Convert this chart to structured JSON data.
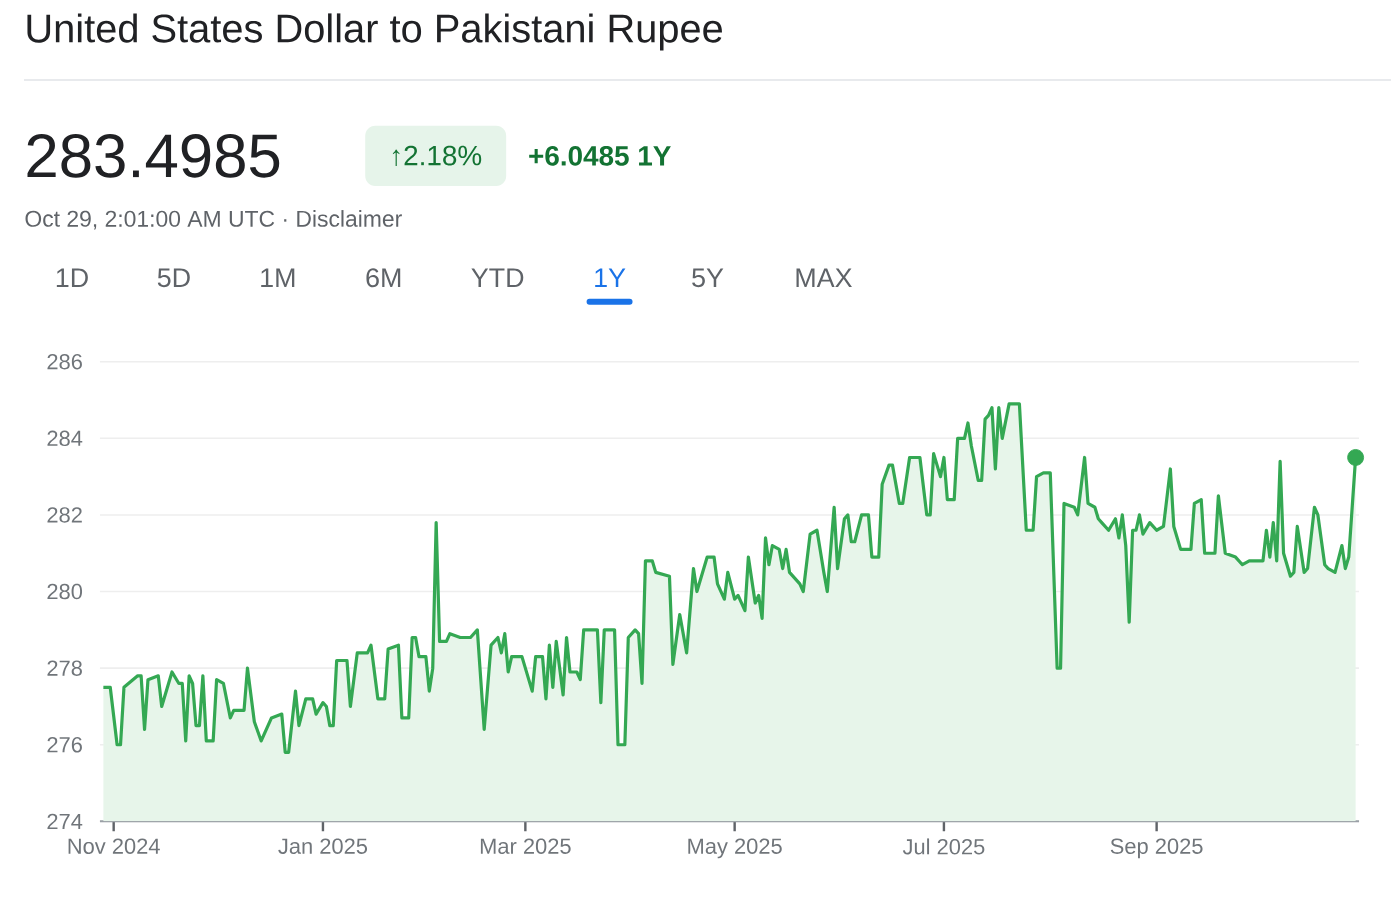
{
  "chart_data": {
    "type": "area",
    "title": "United States Dollar to Pakistani Rupee",
    "annotations": [
      "283.4985",
      "↑2.18%",
      "+6.0485 1Y",
      "Oct 29, 2:01:00 AM UTC · Disclaimer",
      "1D",
      "5D",
      "1M",
      "6M",
      "YTD",
      "1Y",
      "5Y",
      "MAX"
    ],
    "xlim": [
      "2024-10-28",
      "2025-10-30"
    ],
    "ylim": [
      274,
      286
    ],
    "yticks": [
      274,
      276,
      278,
      280,
      282,
      284,
      286
    ],
    "xticks": [
      {
        "value": "2024-11-01",
        "label": "Nov 2024"
      },
      {
        "value": "2025-01-01",
        "label": "Jan 2025"
      },
      {
        "value": "2025-03-01",
        "label": "Mar 2025"
      },
      {
        "value": "2025-05-01",
        "label": "May 2025"
      },
      {
        "value": "2025-07-01",
        "label": "Jul 2025"
      },
      {
        "value": "2025-09-01",
        "label": "Sep 2025"
      }
    ],
    "grid": "y",
    "x": [
      "2024-10-29",
      "2024-10-31",
      "2024-11-02",
      "2024-11-03",
      "2024-11-04",
      "2024-11-08",
      "2024-11-09",
      "2024-11-10",
      "2024-11-11",
      "2024-11-14",
      "2024-11-15",
      "2024-11-18",
      "2024-11-20",
      "2024-11-21",
      "2024-11-22",
      "2024-11-23",
      "2024-11-24",
      "2024-11-25",
      "2024-11-26",
      "2024-11-27",
      "2024-11-28",
      "2024-11-30",
      "2024-12-01",
      "2024-12-03",
      "2024-12-05",
      "2024-12-06",
      "2024-12-09",
      "2024-12-10",
      "2024-12-12",
      "2024-12-14",
      "2024-12-17",
      "2024-12-20",
      "2024-12-21",
      "2024-12-22",
      "2024-12-24",
      "2024-12-25",
      "2024-12-27",
      "2024-12-29",
      "2024-12-30",
      "2025-01-01",
      "2025-01-02",
      "2025-01-03",
      "2025-01-04",
      "2025-01-05",
      "2025-01-08",
      "2025-01-09",
      "2025-01-11",
      "2025-01-14",
      "2025-01-15",
      "2025-01-17",
      "2025-01-19",
      "2025-01-20",
      "2025-01-23",
      "2025-01-24",
      "2025-01-26",
      "2025-01-27",
      "2025-01-28",
      "2025-01-29",
      "2025-01-31",
      "2025-02-01",
      "2025-02-02",
      "2025-02-03",
      "2025-02-04",
      "2025-02-06",
      "2025-02-07",
      "2025-02-10",
      "2025-02-13",
      "2025-02-15",
      "2025-02-17",
      "2025-02-19",
      "2025-02-21",
      "2025-02-22",
      "2025-02-23",
      "2025-02-24",
      "2025-02-25",
      "2025-02-28",
      "2025-03-03",
      "2025-03-04",
      "2025-03-06",
      "2025-03-07",
      "2025-03-08",
      "2025-03-09",
      "2025-03-10",
      "2025-03-12",
      "2025-03-13",
      "2025-03-14",
      "2025-03-16",
      "2025-03-17",
      "2025-03-18",
      "2025-03-22",
      "2025-03-23",
      "2025-03-24",
      "2025-03-27",
      "2025-03-28",
      "2025-03-30",
      "2025-03-31",
      "2025-04-02",
      "2025-04-03",
      "2025-04-04",
      "2025-04-05",
      "2025-04-07",
      "2025-04-08",
      "2025-04-12",
      "2025-04-13",
      "2025-04-15",
      "2025-04-17",
      "2025-04-19",
      "2025-04-20",
      "2025-04-23",
      "2025-04-25",
      "2025-04-26",
      "2025-04-28",
      "2025-04-29",
      "2025-05-01",
      "2025-05-02",
      "2025-05-04",
      "2025-05-05",
      "2025-05-07",
      "2025-05-08",
      "2025-05-09",
      "2025-05-10",
      "2025-05-11",
      "2025-05-12",
      "2025-05-14",
      "2025-05-15",
      "2025-05-16",
      "2025-05-17",
      "2025-05-20",
      "2025-05-21",
      "2025-05-23",
      "2025-05-25",
      "2025-05-27",
      "2025-05-28",
      "2025-05-30",
      "2025-05-31",
      "2025-06-02",
      "2025-06-03",
      "2025-06-04",
      "2025-06-05",
      "2025-06-07",
      "2025-06-09",
      "2025-06-10",
      "2025-06-12",
      "2025-06-13",
      "2025-06-15",
      "2025-06-16",
      "2025-06-18",
      "2025-06-19",
      "2025-06-21",
      "2025-06-24",
      "2025-06-26",
      "2025-06-27",
      "2025-06-28",
      "2025-06-29",
      "2025-06-30",
      "2025-07-01",
      "2025-07-02",
      "2025-07-04",
      "2025-07-05",
      "2025-07-07",
      "2025-07-08",
      "2025-07-09",
      "2025-07-11",
      "2025-07-12",
      "2025-07-13",
      "2025-07-14",
      "2025-07-15",
      "2025-07-16",
      "2025-07-17",
      "2025-07-18",
      "2025-07-20",
      "2025-07-23",
      "2025-07-25",
      "2025-07-27",
      "2025-07-28",
      "2025-07-30",
      "2025-08-01",
      "2025-08-03",
      "2025-08-04",
      "2025-08-05",
      "2025-08-08",
      "2025-08-09",
      "2025-08-11",
      "2025-08-12",
      "2025-08-14",
      "2025-08-15",
      "2025-08-16",
      "2025-08-18",
      "2025-08-20",
      "2025-08-21",
      "2025-08-22",
      "2025-08-23",
      "2025-08-24",
      "2025-08-25",
      "2025-08-26",
      "2025-08-27",
      "2025-08-28",
      "2025-08-30",
      "2025-09-01",
      "2025-09-03",
      "2025-09-05",
      "2025-09-06",
      "2025-09-08",
      "2025-09-11",
      "2025-09-12",
      "2025-09-14",
      "2025-09-15",
      "2025-09-18",
      "2025-09-19",
      "2025-09-21",
      "2025-09-24",
      "2025-09-26",
      "2025-09-28",
      "2025-10-02",
      "2025-10-03",
      "2025-10-04",
      "2025-10-05",
      "2025-10-06",
      "2025-10-07",
      "2025-10-08",
      "2025-10-10",
      "2025-10-11",
      "2025-10-12",
      "2025-10-14",
      "2025-10-15",
      "2025-10-17",
      "2025-10-18",
      "2025-10-20",
      "2025-10-21",
      "2025-10-23",
      "2025-10-25",
      "2025-10-26",
      "2025-10-27",
      "2025-10-29"
    ],
    "series": [
      {
        "color": "#34a853",
        "values": [
          277.5,
          277.5,
          276.0,
          276.0,
          277.5,
          277.8,
          277.8,
          276.4,
          277.7,
          277.8,
          277.0,
          277.9,
          277.6,
          277.6,
          276.1,
          277.8,
          277.6,
          276.5,
          276.5,
          277.8,
          276.1,
          276.1,
          277.7,
          277.6,
          276.7,
          276.9,
          276.9,
          278.0,
          276.6,
          276.1,
          276.7,
          276.8,
          275.8,
          275.8,
          277.4,
          276.5,
          277.2,
          277.2,
          276.8,
          277.1,
          277.0,
          276.5,
          276.5,
          278.2,
          278.2,
          277.0,
          278.4,
          278.4,
          278.6,
          277.2,
          277.2,
          278.5,
          278.6,
          276.7,
          276.7,
          278.8,
          278.8,
          278.3,
          278.3,
          277.4,
          278.0,
          281.8,
          278.7,
          278.7,
          278.9,
          278.8,
          278.8,
          279.0,
          276.4,
          278.6,
          278.8,
          278.4,
          278.9,
          277.9,
          278.3,
          278.3,
          277.4,
          278.3,
          278.3,
          277.2,
          278.6,
          277.5,
          278.7,
          277.3,
          278.8,
          277.9,
          277.9,
          277.7,
          279.0,
          279.0,
          277.1,
          279.0,
          279.0,
          276.0,
          276.0,
          278.8,
          279.0,
          278.9,
          277.6,
          280.8,
          280.8,
          280.5,
          280.4,
          278.1,
          279.4,
          278.4,
          280.6,
          280.0,
          280.9,
          280.9,
          280.2,
          279.8,
          280.5,
          279.8,
          279.9,
          279.5,
          280.9,
          279.7,
          279.9,
          279.3,
          281.4,
          280.7,
          281.2,
          281.1,
          280.6,
          281.1,
          280.5,
          280.2,
          280.0,
          281.5,
          281.6,
          280.5,
          280.0,
          282.2,
          280.6,
          281.9,
          282.0,
          281.3,
          281.3,
          282.0,
          282.0,
          280.9,
          280.9,
          282.8,
          283.3,
          283.3,
          282.3,
          282.3,
          283.5,
          283.5,
          282.0,
          282.0,
          283.6,
          283.3,
          283.0,
          283.5,
          282.4,
          282.4,
          284.0,
          284.0,
          284.4,
          283.8,
          282.9,
          282.9,
          284.5,
          284.6,
          284.8,
          283.2,
          284.8,
          284.0,
          284.9,
          284.9,
          281.6,
          281.6,
          283.0,
          283.1,
          283.1,
          278.0,
          278.0,
          282.3,
          282.2,
          282.0,
          283.5,
          282.3,
          282.2,
          281.9,
          281.8,
          281.6,
          281.9,
          281.4,
          282.0,
          281.2,
          279.2,
          281.6,
          281.6,
          282.0,
          281.5,
          281.8,
          281.6,
          281.7,
          283.2,
          281.7,
          281.1,
          281.1,
          282.3,
          282.4,
          281.0,
          281.0,
          282.5,
          281.0,
          280.9,
          280.7,
          280.8,
          280.8,
          281.6,
          280.9,
          281.8,
          280.8,
          283.4,
          281.0,
          280.4,
          280.5,
          281.7,
          280.5,
          280.6,
          282.2,
          282.0,
          280.7,
          280.6,
          280.5,
          281.2,
          280.6,
          280.9,
          283.5
        ]
      },
      {
        "type": "scatter",
        "color": "#34a853",
        "marker": "circle",
        "x": [
          "2025-10-29"
        ],
        "values": [
          283.5
        ]
      }
    ]
  }
}
